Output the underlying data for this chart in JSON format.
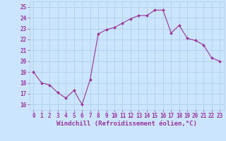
{
  "x": [
    0,
    1,
    2,
    3,
    4,
    5,
    6,
    7,
    8,
    9,
    10,
    11,
    12,
    13,
    14,
    15,
    16,
    17,
    18,
    19,
    20,
    21,
    22,
    23
  ],
  "y": [
    19.0,
    18.0,
    17.8,
    17.1,
    16.6,
    17.3,
    16.0,
    18.3,
    22.5,
    22.9,
    23.1,
    23.5,
    23.9,
    24.2,
    24.2,
    24.7,
    24.7,
    22.6,
    23.3,
    22.1,
    21.9,
    21.5,
    20.3,
    20.0
  ],
  "line_color": "#993399",
  "marker": "D",
  "marker_size": 2.0,
  "line_width": 0.8,
  "bg_color": "#cce5ff",
  "grid_color": "#aaccdd",
  "xlabel": "Windchill (Refroidissement éolien,°C)",
  "xlabel_color": "#993399",
  "xlabel_fontsize": 6.5,
  "tick_color": "#993399",
  "tick_labelsize": 5.5,
  "ylim": [
    15.5,
    25.5
  ],
  "yticks": [
    16,
    17,
    18,
    19,
    20,
    21,
    22,
    23,
    24,
    25
  ],
  "xticks": [
    0,
    1,
    2,
    3,
    4,
    5,
    6,
    7,
    8,
    9,
    10,
    11,
    12,
    13,
    14,
    15,
    16,
    17,
    18,
    19,
    20,
    21,
    22,
    23
  ]
}
